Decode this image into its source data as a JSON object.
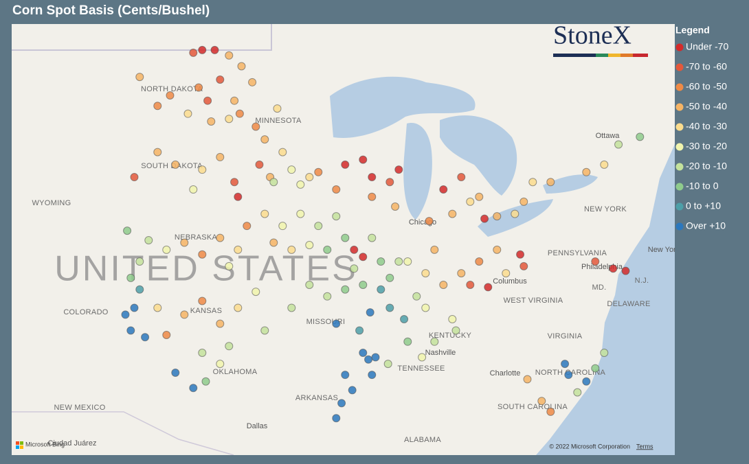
{
  "title": "Corn Spot Basis (Cents/Bushel)",
  "legend": {
    "title": "Legend",
    "items": [
      {
        "label": "Under -70",
        "color": "#d42a2a"
      },
      {
        "label": "-70 to -60",
        "color": "#e3583b"
      },
      {
        "label": "-60 to -50",
        "color": "#ee8a46"
      },
      {
        "label": "-50 to -40",
        "color": "#f6b465"
      },
      {
        "label": "-40 to -30",
        "color": "#fbdc8e"
      },
      {
        "label": "-30 to -20",
        "color": "#f1f4ad"
      },
      {
        "label": "-20 to -10",
        "color": "#c4e29c"
      },
      {
        "label": "-10 to 0",
        "color": "#8fcb8c"
      },
      {
        "label": "0 to +10",
        "color": "#4d9fa8"
      },
      {
        "label": "Over +10",
        "color": "#2c78bd"
      }
    ]
  },
  "map_labels": [
    "NORTH DAKOTA",
    "SOUTH DAKOTA",
    "MINNESOTA",
    "WYOMING",
    "NEBRASKA",
    "COLORADO",
    "KANSAS",
    "MISSOURI",
    "OKLAHOMA",
    "ARKANSAS",
    "NEW MEXICO",
    "TENNESSEE",
    "KENTUCKY",
    "ALABAMA",
    "PENNSYLVANIA",
    "NEW YORK",
    "WEST VIRGINIA",
    "VIRGINIA",
    "NORTH CAROLINA",
    "SOUTH CAROLINA",
    "MD.",
    "DELAWARE",
    "N.J."
  ],
  "cities": [
    "Chicago",
    "Columbus",
    "Philadelphia",
    "Nashville",
    "Charlotte",
    "Dallas",
    "Ottawa",
    "Ciudad Juárez",
    "New York"
  ],
  "country_label": "UNITED STATES",
  "logo": "StoneX",
  "attribution": {
    "bing": "Microsoft Bing",
    "copyright": "© 2022 Microsoft Corporation",
    "terms": "Terms"
  },
  "points": [
    [
      -99.5,
      48.8,
      1
    ],
    [
      -99,
      48.9,
      0
    ],
    [
      -98.3,
      48.9,
      0
    ],
    [
      -97.5,
      48.7,
      3
    ],
    [
      -96.8,
      48.3,
      3
    ],
    [
      -100.8,
      47.2,
      2
    ],
    [
      -99.2,
      47.5,
      2
    ],
    [
      -98,
      47.8,
      1
    ],
    [
      -97.2,
      47,
      3
    ],
    [
      -96.9,
      46.5,
      2
    ],
    [
      -99.8,
      46.5,
      4
    ],
    [
      -98.5,
      46.2,
      3
    ],
    [
      -97.5,
      46.3,
      4
    ],
    [
      -101.5,
      46.8,
      2
    ],
    [
      -102.5,
      47.9,
      3
    ],
    [
      -98.7,
      47.0,
      1
    ],
    [
      -96,
      46,
      2
    ],
    [
      -95.5,
      45.5,
      3
    ],
    [
      -94.5,
      45,
      4
    ],
    [
      -95.8,
      44.5,
      1
    ],
    [
      -95.2,
      44.0,
      3
    ],
    [
      -94,
      44.3,
      5
    ],
    [
      -93,
      44,
      4
    ],
    [
      -94.8,
      46.7,
      4
    ],
    [
      -96.2,
      47.7,
      3
    ],
    [
      -93.5,
      43.7,
      5
    ],
    [
      -92.5,
      44.2,
      2
    ],
    [
      -95,
      43.8,
      6
    ],
    [
      -100.5,
      44.5,
      3
    ],
    [
      -99,
      44.3,
      4
    ],
    [
      -98,
      44.8,
      3
    ],
    [
      -97.2,
      43.8,
      1
    ],
    [
      -97,
      43.2,
      0
    ],
    [
      -99.5,
      43.5,
      5
    ],
    [
      -101.5,
      45,
      3
    ],
    [
      -102.8,
      44,
      1
    ],
    [
      -102,
      41.4,
      6
    ],
    [
      -101,
      41,
      5
    ],
    [
      -100,
      41.3,
      3
    ],
    [
      -99,
      40.8,
      2
    ],
    [
      -98,
      41.5,
      3
    ],
    [
      -97,
      41,
      4
    ],
    [
      -96.5,
      42,
      2
    ],
    [
      -97.5,
      40.3,
      5
    ],
    [
      -103.2,
      41.8,
      7
    ],
    [
      -101.5,
      38.5,
      4
    ],
    [
      -100,
      38.2,
      3
    ],
    [
      -99,
      38.8,
      2
    ],
    [
      -98,
      37.8,
      3
    ],
    [
      -97,
      38.5,
      4
    ],
    [
      -96,
      39.2,
      5
    ],
    [
      -95.5,
      37.5,
      6
    ],
    [
      -101,
      37.3,
      2
    ],
    [
      -102.5,
      39.3,
      8
    ],
    [
      -102.8,
      38.5,
      9
    ],
    [
      -103.3,
      38.2,
      9
    ],
    [
      -102.2,
      37.2,
      9
    ],
    [
      -103.0,
      37.5,
      9
    ],
    [
      -102.5,
      40.5,
      6
    ],
    [
      -103,
      39.8,
      7
    ],
    [
      -99,
      36.5,
      6
    ],
    [
      -98,
      36,
      5
    ],
    [
      -97.5,
      36.8,
      6
    ],
    [
      -100.5,
      35.6,
      9
    ],
    [
      -99.5,
      34.9,
      9
    ],
    [
      -98.8,
      35.2,
      7
    ],
    [
      -95.5,
      42.5,
      4
    ],
    [
      -94.5,
      42,
      5
    ],
    [
      -93.5,
      42.5,
      5
    ],
    [
      -92.5,
      42,
      6
    ],
    [
      -91.5,
      42.4,
      6
    ],
    [
      -93,
      41.2,
      5
    ],
    [
      -94,
      41,
      4
    ],
    [
      -92,
      41,
      7
    ],
    [
      -91,
      41.5,
      7
    ],
    [
      -95,
      41.3,
      3
    ],
    [
      -90.5,
      41,
      0
    ],
    [
      -90.0,
      40.7,
      0
    ],
    [
      -89.5,
      41.5,
      6
    ],
    [
      -89,
      40.5,
      7
    ],
    [
      -88.5,
      39.8,
      7
    ],
    [
      -89,
      39.3,
      8
    ],
    [
      -90,
      39.5,
      7
    ],
    [
      -88,
      40.5,
      6
    ],
    [
      -89.6,
      38.3,
      9
    ],
    [
      -88.5,
      38.5,
      8
    ],
    [
      -90.5,
      40.2,
      6
    ],
    [
      -93,
      39.5,
      6
    ],
    [
      -92,
      39,
      6
    ],
    [
      -91,
      39.3,
      7
    ],
    [
      -94,
      38.5,
      6
    ],
    [
      -90.0,
      36.5,
      9
    ],
    [
      -89.7,
      36.2,
      9
    ],
    [
      -90.2,
      37.5,
      8
    ],
    [
      -91.5,
      37.8,
      9
    ],
    [
      -87.5,
      40.5,
      5
    ],
    [
      -86.5,
      40,
      4
    ],
    [
      -86,
      41,
      3
    ],
    [
      -87,
      39,
      6
    ],
    [
      -85.5,
      39.5,
      3
    ],
    [
      -86.5,
      38.5,
      5
    ],
    [
      -87.7,
      38,
      8
    ],
    [
      -84.5,
      40,
      3
    ],
    [
      -83.5,
      40.5,
      2
    ],
    [
      -82.5,
      41,
      3
    ],
    [
      -84,
      39.5,
      1
    ],
    [
      -83,
      39.4,
      0
    ],
    [
      -82,
      40,
      4
    ],
    [
      -81.2,
      40.8,
      0
    ],
    [
      -81,
      40.3,
      1
    ],
    [
      -85,
      42.5,
      3
    ],
    [
      -84,
      43,
      4
    ],
    [
      -83.5,
      43.2,
      3
    ],
    [
      -85.5,
      43.5,
      0
    ],
    [
      -84.5,
      44,
      1
    ],
    [
      -83.2,
      42.3,
      0
    ],
    [
      -86.3,
      42.2,
      2
    ],
    [
      -91,
      44.5,
      0
    ],
    [
      -90,
      44.7,
      0
    ],
    [
      -89.5,
      44,
      0
    ],
    [
      -88.5,
      43.8,
      1
    ],
    [
      -88,
      44.3,
      0
    ],
    [
      -91.5,
      43.5,
      2
    ],
    [
      -89.5,
      43.2,
      2
    ],
    [
      -88.2,
      42.8,
      3
    ],
    [
      -81,
      43,
      3
    ],
    [
      -80.5,
      43.8,
      4
    ],
    [
      -79.5,
      43.8,
      3
    ],
    [
      -77.5,
      44.2,
      3
    ],
    [
      -76.5,
      44.5,
      4
    ],
    [
      -75.7,
      45.3,
      6
    ],
    [
      -74.5,
      45.6,
      7
    ],
    [
      -81.5,
      42.5,
      4
    ],
    [
      -82.5,
      42.4,
      3
    ],
    [
      -76,
      40.2,
      0
    ],
    [
      -75.3,
      40.1,
      0
    ],
    [
      -77,
      40.5,
      1
    ],
    [
      -86,
      37,
      6
    ],
    [
      -85,
      38,
      5
    ],
    [
      -87.5,
      37,
      7
    ],
    [
      -86.7,
      36.3,
      5
    ],
    [
      -88.6,
      36,
      6
    ],
    [
      -89.3,
      36.3,
      9
    ],
    [
      -89.5,
      35.5,
      9
    ],
    [
      -91,
      35.5,
      9
    ],
    [
      -90.6,
      34.8,
      9
    ],
    [
      -91.2,
      34.2,
      9
    ],
    [
      -91.5,
      33.5,
      9
    ],
    [
      -84.8,
      37.5,
      6
    ],
    [
      -80.8,
      35.3,
      3
    ],
    [
      -78.5,
      35.5,
      9
    ],
    [
      -77.5,
      35.2,
      9
    ],
    [
      -77.0,
      35.8,
      7
    ],
    [
      -78.0,
      34.7,
      6
    ],
    [
      -80,
      34.3,
      3
    ],
    [
      -79.5,
      33.8,
      2
    ],
    [
      -76.5,
      36.5,
      6
    ],
    [
      -78.7,
      36,
      9
    ]
  ]
}
